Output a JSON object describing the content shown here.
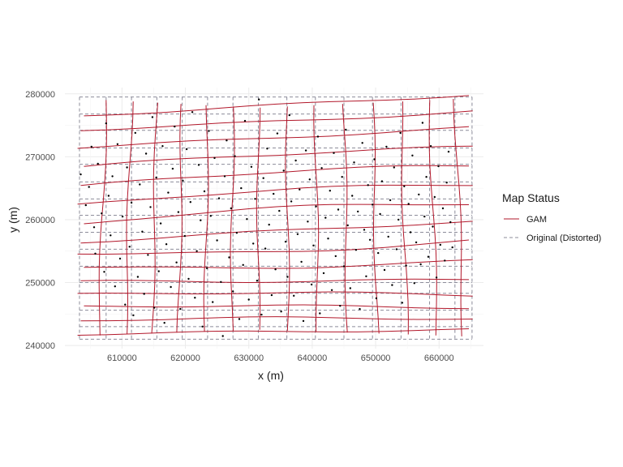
{
  "chart_data": {
    "type": "line",
    "title": "",
    "xlabel": "x (m)",
    "ylabel": "y (m)",
    "xlim": [
      601000,
      667000
    ],
    "ylim": [
      239500,
      281000
    ],
    "x_ticks": [
      610000,
      620000,
      630000,
      640000,
      650000,
      660000
    ],
    "x_tick_labels": [
      "610000",
      "620000",
      "630000",
      "640000",
      "650000",
      "660000"
    ],
    "y_ticks": [
      240000,
      250000,
      260000,
      270000,
      280000
    ],
    "y_tick_labels": [
      "240000",
      "250000",
      "260000",
      "270000",
      "280000"
    ],
    "grid": true,
    "background": "minimal",
    "legend": {
      "title": "Map Status",
      "placement": "right",
      "entries": [
        {
          "label": "GAM",
          "color": "#b2182b",
          "linetype": "solid"
        },
        {
          "label": "Original (Distorted)",
          "color": "#8c8c9a",
          "linetype": "dashed"
        }
      ]
    },
    "series": [
      {
        "name": "GAM",
        "color": "#b2182b",
        "linetype": "solid",
        "horizontal_lines_y": [
          [
            276.5,
            278.2,
            279.8
          ],
          [
            274.3,
            275.6,
            277.2
          ],
          [
            271.5,
            273.0,
            274.6
          ],
          [
            268.5,
            270.4,
            271.6
          ],
          [
            265.3,
            267.6,
            268.6
          ],
          [
            262.3,
            264.7,
            265.6
          ],
          [
            259.3,
            261.9,
            262.5
          ],
          [
            256.4,
            258.2,
            259.7
          ],
          [
            254.7,
            254.9,
            256.6
          ],
          [
            252.5,
            252.4,
            253.5
          ],
          [
            250.2,
            250.2,
            250.5
          ],
          [
            248.1,
            248.4,
            248.0
          ],
          [
            246.2,
            246.3,
            246.0
          ],
          [
            244.0,
            244.4,
            244.2
          ],
          [
            241.8,
            242.2,
            242.5
          ]
        ],
        "horizontal_lines_x_span": [
          603500,
          665000
        ],
        "vertical_lines_x": [
          607500,
          611500,
          615500,
          619500,
          623500,
          627500,
          631500,
          636000,
          640500,
          645000,
          649500,
          654000,
          658500,
          662500
        ],
        "vertical_lines_y_span": [
          241000,
          279800
        ]
      },
      {
        "name": "Original (Distorted)",
        "color": "#8c8c9a",
        "linetype": "dashed",
        "horizontal_lines_y": [
          279.5,
          276.8,
          274.2,
          271.4,
          268.8,
          266.0,
          263.3,
          260.7,
          258.0,
          255.3,
          252.6,
          250.0,
          248.3,
          245.6,
          243.0,
          241.0
        ],
        "vertical_lines_x": [
          603300,
          607500,
          611500,
          615500,
          619500,
          623500,
          627500,
          631500,
          636000,
          640500,
          645000,
          649500,
          654000,
          658500,
          662500,
          665200
        ],
        "y_span": [
          241000,
          279500
        ]
      }
    ],
    "points": [
      [
        603500,
        267200
      ],
      [
        604300,
        262300
      ],
      [
        604800,
        265200
      ],
      [
        605200,
        271600
      ],
      [
        605600,
        258800
      ],
      [
        605800,
        254600
      ],
      [
        606200,
        268900
      ],
      [
        606800,
        261000
      ],
      [
        607200,
        251700
      ],
      [
        607500,
        275300
      ],
      [
        607900,
        263800
      ],
      [
        608200,
        257500
      ],
      [
        608500,
        266900
      ],
      [
        608900,
        249400
      ],
      [
        609300,
        272000
      ],
      [
        609700,
        253800
      ],
      [
        610100,
        260500
      ],
      [
        610500,
        246500
      ],
      [
        610800,
        268300
      ],
      [
        611200,
        255700
      ],
      [
        611500,
        262700
      ],
      [
        611800,
        244800
      ],
      [
        612100,
        273800
      ],
      [
        612500,
        250900
      ],
      [
        612800,
        265600
      ],
      [
        613200,
        258100
      ],
      [
        613500,
        248200
      ],
      [
        613800,
        270500
      ],
      [
        614100,
        254400
      ],
      [
        614500,
        262000
      ],
      [
        614800,
        276300
      ],
      [
        615100,
        246000
      ],
      [
        615400,
        266700
      ],
      [
        615800,
        251800
      ],
      [
        616100,
        259400
      ],
      [
        616400,
        271700
      ],
      [
        616700,
        243600
      ],
      [
        617000,
        256100
      ],
      [
        617300,
        264300
      ],
      [
        617700,
        249300
      ],
      [
        618000,
        268100
      ],
      [
        618300,
        274800
      ],
      [
        618600,
        253200
      ],
      [
        618900,
        261200
      ],
      [
        619200,
        245800
      ],
      [
        619600,
        266200
      ],
      [
        619900,
        257400
      ],
      [
        620200,
        271200
      ],
      [
        620500,
        250600
      ],
      [
        620800,
        262800
      ],
      [
        621100,
        277100
      ],
      [
        621500,
        247600
      ],
      [
        621800,
        255000
      ],
      [
        622100,
        268700
      ],
      [
        622400,
        259900
      ],
      [
        622700,
        243000
      ],
      [
        623000,
        264500
      ],
      [
        623400,
        252300
      ],
      [
        623700,
        274100
      ],
      [
        624000,
        260600
      ],
      [
        624300,
        246900
      ],
      [
        624600,
        269800
      ],
      [
        625000,
        256700
      ],
      [
        625300,
        263400
      ],
      [
        625600,
        250100
      ],
      [
        625900,
        241500
      ],
      [
        626200,
        266900
      ],
      [
        626500,
        272600
      ],
      [
        626900,
        254000
      ],
      [
        627200,
        261800
      ],
      [
        627500,
        248600
      ],
      [
        627800,
        270100
      ],
      [
        628100,
        257900
      ],
      [
        628500,
        244200
      ],
      [
        628800,
        265000
      ],
      [
        629100,
        252800
      ],
      [
        629400,
        275700
      ],
      [
        629700,
        260100
      ],
      [
        630000,
        247300
      ],
      [
        630400,
        268400
      ],
      [
        630700,
        256200
      ],
      [
        631000,
        263300
      ],
      [
        631300,
        250300
      ],
      [
        631600,
        279100
      ],
      [
        632000,
        244900
      ],
      [
        632300,
        266600
      ],
      [
        632600,
        255400
      ],
      [
        632900,
        271300
      ],
      [
        633200,
        259200
      ],
      [
        633600,
        248000
      ],
      [
        633900,
        264100
      ],
      [
        634200,
        252100
      ],
      [
        634500,
        273700
      ],
      [
        634800,
        261400
      ],
      [
        635100,
        245400
      ],
      [
        635500,
        267800
      ],
      [
        635800,
        256500
      ],
      [
        636100,
        250900
      ],
      [
        636400,
        276600
      ],
      [
        636700,
        262900
      ],
      [
        637100,
        247900
      ],
      [
        637400,
        269400
      ],
      [
        637700,
        257700
      ],
      [
        638000,
        264800
      ],
      [
        638300,
        253300
      ],
      [
        638600,
        243900
      ],
      [
        639000,
        271000
      ],
      [
        639300,
        259700
      ],
      [
        639600,
        266400
      ],
      [
        639900,
        249700
      ],
      [
        640200,
        255900
      ],
      [
        640600,
        262100
      ],
      [
        640900,
        273200
      ],
      [
        641200,
        245100
      ],
      [
        641500,
        268200
      ],
      [
        641800,
        251500
      ],
      [
        642100,
        260300
      ],
      [
        642500,
        257000
      ],
      [
        642800,
        264600
      ],
      [
        643100,
        248800
      ],
      [
        643400,
        270600
      ],
      [
        643700,
        254200
      ],
      [
        644100,
        261600
      ],
      [
        644400,
        246300
      ],
      [
        644700,
        266800
      ],
      [
        645000,
        252600
      ],
      [
        645300,
        274300
      ],
      [
        645600,
        259100
      ],
      [
        646000,
        249100
      ],
      [
        646300,
        263800
      ],
      [
        646600,
        269100
      ],
      [
        646900,
        255200
      ],
      [
        647200,
        261300
      ],
      [
        647500,
        245800
      ],
      [
        647900,
        272200
      ],
      [
        648200,
        258400
      ],
      [
        648500,
        251000
      ],
      [
        648800,
        265500
      ],
      [
        649100,
        256800
      ],
      [
        649500,
        262400
      ],
      [
        649800,
        269600
      ],
      [
        650100,
        247500
      ],
      [
        650400,
        254700
      ],
      [
        650700,
        260900
      ],
      [
        651000,
        266100
      ],
      [
        651400,
        252000
      ],
      [
        651700,
        271600
      ],
      [
        652000,
        257300
      ],
      [
        652300,
        263100
      ],
      [
        652600,
        249600
      ],
      [
        652900,
        268300
      ],
      [
        653300,
        255300
      ],
      [
        653600,
        260000
      ],
      [
        653900,
        273800
      ],
      [
        654200,
        246800
      ],
      [
        654500,
        265300
      ],
      [
        654800,
        252700
      ],
      [
        655200,
        262500
      ],
      [
        655500,
        258000
      ],
      [
        655800,
        270200
      ],
      [
        656100,
        249900
      ],
      [
        656400,
        256400
      ],
      [
        656800,
        264000
      ],
      [
        657100,
        252900
      ],
      [
        657400,
        275400
      ],
      [
        657700,
        260500
      ],
      [
        658000,
        266800
      ],
      [
        658300,
        254100
      ],
      [
        658700,
        271700
      ],
      [
        659000,
        258900
      ],
      [
        659300,
        263600
      ],
      [
        659600,
        250800
      ],
      [
        659900,
        268500
      ],
      [
        660200,
        256000
      ],
      [
        660600,
        261800
      ],
      [
        660900,
        253500
      ],
      [
        661200,
        265900
      ],
      [
        661500,
        270800
      ],
      [
        661800,
        259600
      ],
      [
        662100,
        255600
      ]
    ]
  }
}
